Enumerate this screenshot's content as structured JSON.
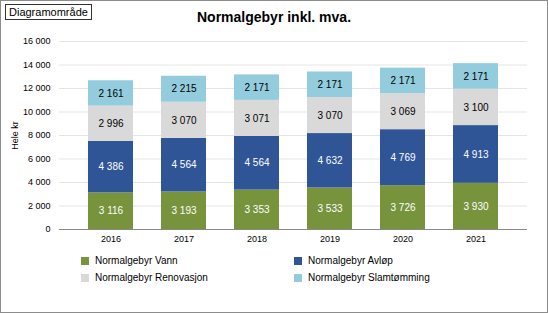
{
  "chart_data": {
    "type": "bar",
    "title": "Normalgebyr inkl. mva.",
    "annotations": [
      "Diagramområde"
    ],
    "y_label": "Hele kr",
    "categories": [
      "2016",
      "2017",
      "2018",
      "2019",
      "2020",
      "2021"
    ],
    "series": [
      {
        "name": "Normalgebyr Vann",
        "color": "#77933c",
        "values": [
          3116,
          3193,
          3353,
          3533,
          3726,
          3930
        ],
        "value_labels": [
          "3 116",
          "3 193",
          "3 353",
          "3 533",
          "3 726",
          "3 930"
        ]
      },
      {
        "name": "Normalgebyr Avløp",
        "color": "#2f5597",
        "values": [
          4386,
          4564,
          4564,
          4632,
          4769,
          4913
        ],
        "value_labels": [
          "4 386",
          "4 564",
          "4 564",
          "4 632",
          "4 769",
          "4 913"
        ]
      },
      {
        "name": "Normalgebyr Renovasjon",
        "color": "#d9d9d9",
        "values": [
          2996,
          3070,
          3071,
          3070,
          3069,
          3100
        ],
        "value_labels": [
          "2 996",
          "3 070",
          "3 071",
          "3 070",
          "3 069",
          "3 100"
        ]
      },
      {
        "name": "Normalgebyr Slamtømming",
        "color": "#93cddd",
        "values": [
          2161,
          2215,
          2171,
          2171,
          2171,
          2171
        ],
        "value_labels": [
          "2 161",
          "2 215",
          "2 171",
          "2 171",
          "2 171",
          "2 171"
        ]
      }
    ],
    "stacked": true,
    "data_labels": true,
    "ylim": [
      0,
      16000
    ],
    "yticks": [
      0,
      {
        "value": 2000,
        "label": "2 000"
      },
      {
        "value": 4000,
        "label": "4 000"
      },
      {
        "value": 6000,
        "label": "6 000"
      },
      {
        "value": 8000,
        "label": "8 000"
      },
      {
        "value": 10000,
        "label": "10 000"
      },
      {
        "value": 12000,
        "label": "12 000"
      },
      {
        "value": 14000,
        "label": "14 000"
      },
      {
        "value": 16000,
        "label": "16 000"
      }
    ],
    "grid": true,
    "legend": "bottom"
  }
}
